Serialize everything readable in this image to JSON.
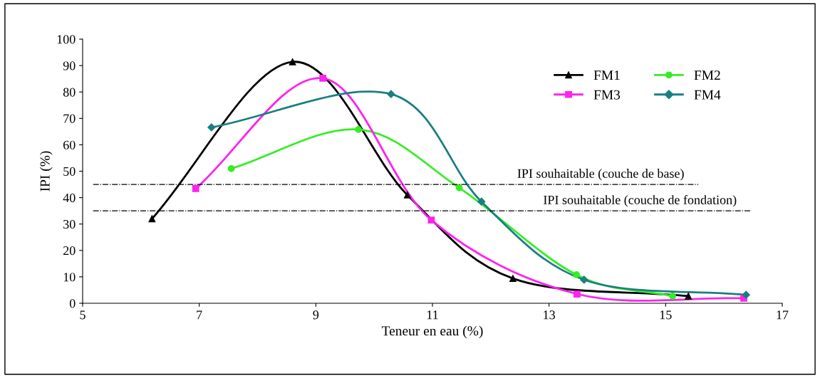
{
  "chart_data": {
    "type": "line",
    "xlabel": "Teneur en eau (%)",
    "ylabel": "IPI (%)",
    "xlim": [
      5,
      17
    ],
    "xticks": [
      5,
      7,
      9,
      11,
      13,
      15,
      17
    ],
    "ylim": [
      0,
      100
    ],
    "yticks": [
      0,
      10,
      20,
      30,
      40,
      50,
      60,
      70,
      80,
      90,
      100
    ],
    "grid": false,
    "legend": "top right",
    "line_style": "solid",
    "series": [
      {
        "name": "FM1",
        "color": "#000000",
        "marker": "triangle",
        "x": [
          6.19,
          8.6,
          10.57,
          12.38,
          15.39
        ],
        "values": [
          32,
          91.4,
          41,
          9.4,
          2.7
        ]
      },
      {
        "name": "FM2",
        "color": "#33ee22",
        "marker": "circle",
        "x": [
          7.55,
          9.73,
          11.46,
          13.47,
          15.12
        ],
        "values": [
          51,
          65.8,
          43.7,
          10.8,
          2.7
        ]
      },
      {
        "name": "FM3",
        "color": "#ff22ee",
        "marker": "square",
        "x": [
          6.94,
          9.12,
          10.98,
          13.48,
          16.34
        ],
        "values": [
          43.4,
          85.2,
          31.5,
          3.5,
          1.9
        ]
      },
      {
        "name": "FM4",
        "color": "#1a7f82",
        "marker": "diamond",
        "x": [
          7.21,
          10.29,
          11.84,
          13.6,
          16.38
        ],
        "values": [
          66.6,
          79.2,
          38.5,
          8.9,
          3.2
        ]
      }
    ],
    "ref_lines": [
      {
        "axis": "y",
        "value": 45,
        "label": "IPI souhaitable (couche de base)",
        "color": "#000000",
        "line_style": "dashdot"
      },
      {
        "axis": "y",
        "value": 35,
        "label": "IPI souhaitable (couche de fondation)",
        "color": "#000000",
        "line_style": "dashdot"
      }
    ]
  }
}
